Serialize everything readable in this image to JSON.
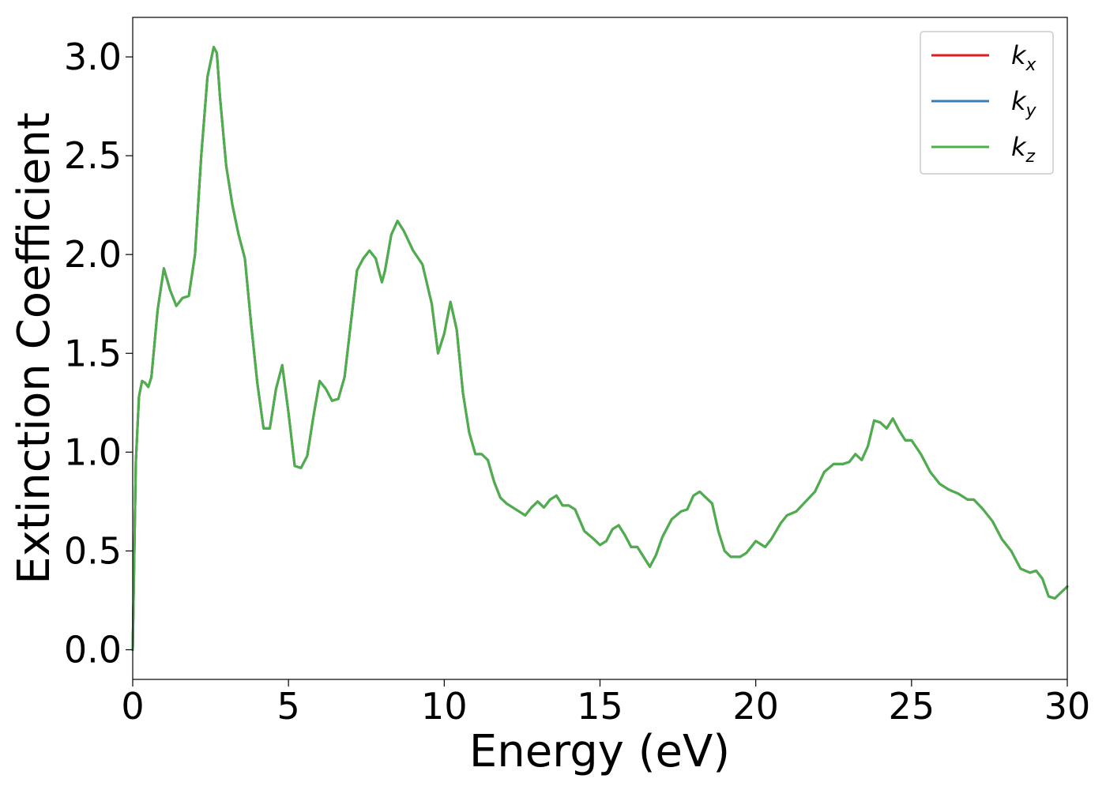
{
  "chart_data": {
    "type": "line",
    "title": "",
    "xlabel": "Energy (eV)",
    "ylabel": "Extinction Coefficient",
    "xlim": [
      0,
      30
    ],
    "ylim": [
      -0.15,
      3.2
    ],
    "xticks": [
      "0",
      "5",
      "10",
      "15",
      "20",
      "25",
      "30"
    ],
    "yticks": [
      "0.0",
      "0.5",
      "1.0",
      "1.5",
      "2.0",
      "2.5",
      "3.0"
    ],
    "grid": false,
    "legend_position": "top-right",
    "x": [
      0,
      0.1,
      0.2,
      0.3,
      0.4,
      0.5,
      0.6,
      0.8,
      1.0,
      1.2,
      1.4,
      1.6,
      1.8,
      2.0,
      2.2,
      2.4,
      2.6,
      2.7,
      2.8,
      3.0,
      3.2,
      3.4,
      3.6,
      3.8,
      4.0,
      4.2,
      4.4,
      4.6,
      4.8,
      5.0,
      5.2,
      5.4,
      5.6,
      5.8,
      6.0,
      6.2,
      6.4,
      6.6,
      6.8,
      7.0,
      7.2,
      7.4,
      7.6,
      7.8,
      8.0,
      8.1,
      8.3,
      8.5,
      8.7,
      9.0,
      9.3,
      9.6,
      9.8,
      10.0,
      10.2,
      10.4,
      10.6,
      10.8,
      11.0,
      11.2,
      11.4,
      11.6,
      11.8,
      12.0,
      12.4,
      12.6,
      12.8,
      13.0,
      13.2,
      13.4,
      13.6,
      13.8,
      14.0,
      14.2,
      14.5,
      14.8,
      15.0,
      15.2,
      15.4,
      15.6,
      15.8,
      16.0,
      16.2,
      16.4,
      16.6,
      16.8,
      17.0,
      17.3,
      17.6,
      17.8,
      18.0,
      18.2,
      18.4,
      18.6,
      18.8,
      19.0,
      19.2,
      19.5,
      19.7,
      20.0,
      20.3,
      20.5,
      20.8,
      21.0,
      21.3,
      21.6,
      21.9,
      22.2,
      22.5,
      22.8,
      23.0,
      23.2,
      23.4,
      23.6,
      23.8,
      24.0,
      24.2,
      24.4,
      24.6,
      24.8,
      25.0,
      25.3,
      25.6,
      25.9,
      26.2,
      26.5,
      26.8,
      27.0,
      27.3,
      27.6,
      27.9,
      28.2,
      28.5,
      28.8,
      29.0,
      29.2,
      29.4,
      29.6,
      29.8,
      30.0
    ],
    "series": [
      {
        "name": "k_x",
        "label_main": "k",
        "label_sub": "x",
        "color": "#e41a1c"
      },
      {
        "name": "k_y",
        "label_main": "k",
        "label_sub": "y",
        "color": "#377eb8"
      },
      {
        "name": "k_z",
        "label_main": "k",
        "label_sub": "z",
        "color": "#4daf4a"
      }
    ],
    "values": [
      0.0,
      0.95,
      1.28,
      1.36,
      1.35,
      1.33,
      1.38,
      1.72,
      1.93,
      1.82,
      1.74,
      1.78,
      1.79,
      2.0,
      2.5,
      2.9,
      3.05,
      3.02,
      2.8,
      2.45,
      2.25,
      2.1,
      1.98,
      1.65,
      1.35,
      1.12,
      1.12,
      1.32,
      1.44,
      1.2,
      0.93,
      0.92,
      0.98,
      1.18,
      1.36,
      1.32,
      1.26,
      1.27,
      1.38,
      1.65,
      1.92,
      1.98,
      2.02,
      1.98,
      1.86,
      1.92,
      2.1,
      2.17,
      2.12,
      2.02,
      1.95,
      1.75,
      1.5,
      1.6,
      1.76,
      1.62,
      1.3,
      1.1,
      0.99,
      0.99,
      0.96,
      0.85,
      0.77,
      0.74,
      0.7,
      0.68,
      0.72,
      0.75,
      0.72,
      0.76,
      0.78,
      0.73,
      0.73,
      0.71,
      0.6,
      0.56,
      0.53,
      0.55,
      0.61,
      0.63,
      0.58,
      0.52,
      0.52,
      0.47,
      0.42,
      0.48,
      0.57,
      0.66,
      0.7,
      0.71,
      0.78,
      0.8,
      0.77,
      0.74,
      0.6,
      0.5,
      0.47,
      0.47,
      0.49,
      0.55,
      0.52,
      0.56,
      0.64,
      0.68,
      0.7,
      0.75,
      0.8,
      0.9,
      0.94,
      0.94,
      0.95,
      0.99,
      0.96,
      1.03,
      1.16,
      1.15,
      1.12,
      1.17,
      1.11,
      1.06,
      1.06,
      0.99,
      0.9,
      0.84,
      0.81,
      0.79,
      0.76,
      0.76,
      0.71,
      0.65,
      0.56,
      0.5,
      0.41,
      0.39,
      0.4,
      0.36,
      0.27,
      0.26,
      0.29,
      0.32
    ]
  }
}
